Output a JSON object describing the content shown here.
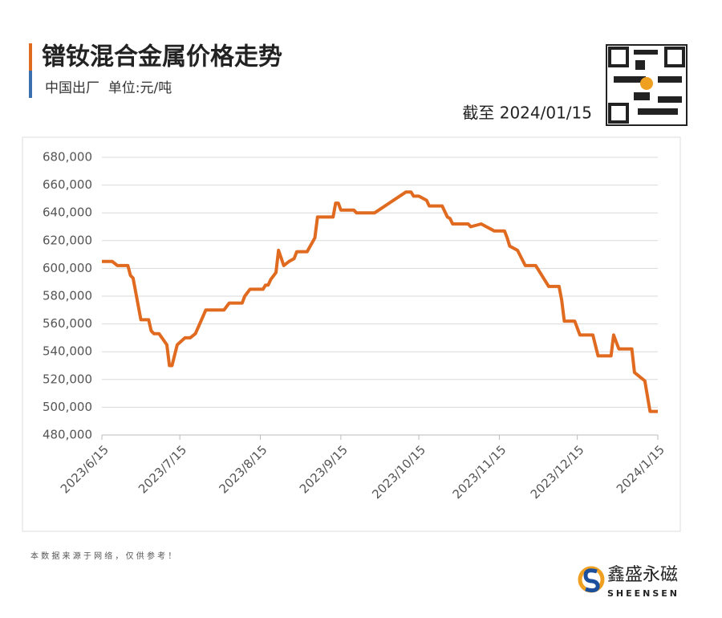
{
  "chart_data": {
    "type": "line",
    "title": "镨钕混合金属价格走势",
    "subtitle": "中国出厂  单位:元/吨",
    "annotation": "截至 2024/01/15",
    "note": "本 数 据 来 源 于 网 络 ， 仅 供 参 考 ！",
    "brand": "鑫盛永磁",
    "brand_en": "SHEENSEN",
    "x": [
      "2023-06-15",
      "2023-06-19",
      "2023-06-21",
      "2023-06-25",
      "2023-06-26",
      "2023-06-27",
      "2023-06-30",
      "2023-07-03",
      "2023-07-04",
      "2023-07-05",
      "2023-07-07",
      "2023-07-10",
      "2023-07-11",
      "2023-07-12",
      "2023-07-14",
      "2023-07-17",
      "2023-07-19",
      "2023-07-21",
      "2023-07-25",
      "2023-08-01",
      "2023-08-03",
      "2023-08-08",
      "2023-08-09",
      "2023-08-11",
      "2023-08-16",
      "2023-08-17",
      "2023-08-18",
      "2023-08-19",
      "2023-08-21",
      "2023-08-22",
      "2023-08-24",
      "2023-08-26",
      "2023-08-28",
      "2023-08-29",
      "2023-09-02",
      "2023-09-05",
      "2023-09-06",
      "2023-09-12",
      "2023-09-13",
      "2023-09-14",
      "2023-09-15",
      "2023-09-20",
      "2023-09-21",
      "2023-09-28",
      "2023-10-10",
      "2023-10-12",
      "2023-10-13",
      "2023-10-15",
      "2023-10-18",
      "2023-10-19",
      "2023-10-24",
      "2023-10-26",
      "2023-10-27",
      "2023-10-28",
      "2023-11-03",
      "2023-11-04",
      "2023-11-08",
      "2023-11-10",
      "2023-11-13",
      "2023-11-17",
      "2023-11-18",
      "2023-11-19",
      "2023-11-22",
      "2023-11-25",
      "2023-11-29",
      "2023-12-01",
      "2023-12-02",
      "2023-12-04",
      "2023-12-08",
      "2023-12-09",
      "2023-12-10",
      "2023-12-14",
      "2023-12-16",
      "2023-12-21",
      "2023-12-23",
      "2023-12-28",
      "2023-12-29",
      "2023-12-31",
      "2024-01-05",
      "2024-01-06",
      "2024-01-08",
      "2024-01-10",
      "2024-01-12",
      "2024-01-15"
    ],
    "series": [
      {
        "name": "镨钕混合金属",
        "color": "#e06a1f",
        "values": [
          605000,
          605000,
          602000,
          602000,
          595000,
          593000,
          563000,
          563000,
          555000,
          553000,
          553000,
          545000,
          530000,
          530000,
          545000,
          550000,
          550000,
          553000,
          570000,
          570000,
          575000,
          575000,
          580000,
          585000,
          585000,
          588000,
          588000,
          592000,
          597000,
          613000,
          602000,
          605000,
          607000,
          612000,
          612000,
          622000,
          637000,
          637000,
          647000,
          647000,
          642000,
          642000,
          640000,
          640000,
          655000,
          655000,
          652000,
          652000,
          649000,
          645000,
          645000,
          637000,
          636000,
          632000,
          632000,
          630000,
          632000,
          630000,
          627000,
          627000,
          622000,
          616000,
          613000,
          602000,
          602000,
          596000,
          593000,
          587000,
          587000,
          577000,
          562000,
          562000,
          552000,
          552000,
          537000,
          537000,
          552000,
          542000,
          542000,
          525000,
          522000,
          519000,
          497000,
          497000
        ]
      }
    ],
    "xlim": [
      "2023-06-15",
      "2024-01-15"
    ],
    "xticks": [
      {
        "value": "2023-06-15",
        "label": "2023/6/15"
      },
      {
        "value": "2023-07-15",
        "label": "2023/7/15"
      },
      {
        "value": "2023-08-15",
        "label": "2023/8/15"
      },
      {
        "value": "2023-09-15",
        "label": "2023/9/15"
      },
      {
        "value": "2023-10-15",
        "label": "2023/10/15"
      },
      {
        "value": "2023-11-15",
        "label": "2023/11/15"
      },
      {
        "value": "2023-12-15",
        "label": "2023/12/15"
      },
      {
        "value": "2024-01-15",
        "label": "2024/1/15"
      }
    ],
    "ylim": [
      480000,
      680000
    ],
    "yticks": [
      {
        "value": 480000,
        "label": "480,000"
      },
      {
        "value": 500000,
        "label": "500,000"
      },
      {
        "value": 520000,
        "label": "520,000"
      },
      {
        "value": 540000,
        "label": "540,000"
      },
      {
        "value": 560000,
        "label": "560,000"
      },
      {
        "value": 580000,
        "label": "580,000"
      },
      {
        "value": 600000,
        "label": "600,000"
      },
      {
        "value": 620000,
        "label": "620,000"
      },
      {
        "value": 640000,
        "label": "640,000"
      },
      {
        "value": 660000,
        "label": "660,000"
      },
      {
        "value": 680000,
        "label": "680,000"
      }
    ],
    "grid": true
  }
}
